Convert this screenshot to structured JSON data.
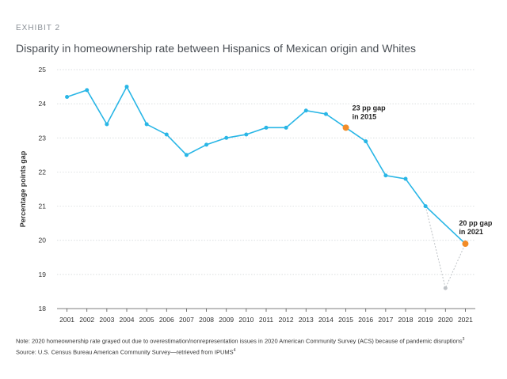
{
  "header": {
    "exhibit": "EXHIBIT 2",
    "title": "Disparity in homeownership rate between Hispanics of Mexican origin and Whites"
  },
  "footer": {
    "note": "Note: 2020 homeownership rate grayed out due to overestimation/nonrepresentation issues in 2020 American Community Survey (ACS) because of pandemic disruptions",
    "note_sup": "3",
    "source": "Source: U.S. Census Bureau American Community Survey—retrieved from IPUMS",
    "source_sup": "4"
  },
  "colors": {
    "line": "#29b6e6",
    "highlight": "#f28c28",
    "grayed": "#bfc3c7",
    "grid": "#cfd3d6",
    "axis": "#555555"
  },
  "chart_data": {
    "type": "line",
    "title": "Disparity in homeownership rate between Hispanics of Mexican origin and Whites",
    "xlabel": "",
    "ylabel": "Percentage points gap",
    "ylim": [
      18,
      25
    ],
    "yticks": [
      18,
      19,
      20,
      21,
      22,
      23,
      24,
      25
    ],
    "grid": true,
    "x": [
      2001,
      2002,
      2003,
      2004,
      2005,
      2006,
      2007,
      2008,
      2009,
      2010,
      2011,
      2012,
      2013,
      2014,
      2015,
      2016,
      2017,
      2018,
      2019,
      2020,
      2021
    ],
    "series": [
      {
        "values": [
          24.2,
          24.4,
          23.4,
          24.5,
          23.4,
          23.1,
          22.5,
          22.8,
          23.0,
          23.1,
          23.3,
          23.3,
          23.8,
          23.7,
          23.3,
          22.9,
          21.9,
          21.8,
          21.0,
          18.6,
          19.9
        ]
      }
    ],
    "grayed_years": [
      2020
    ],
    "highlights": [
      {
        "x": 2015,
        "value": 23.3,
        "label_line1": "23 pp gap",
        "label_line2": "in 2015"
      },
      {
        "x": 2021,
        "value": 19.9,
        "label_line1": "20 pp gap",
        "label_line2": "in 2021"
      }
    ]
  }
}
